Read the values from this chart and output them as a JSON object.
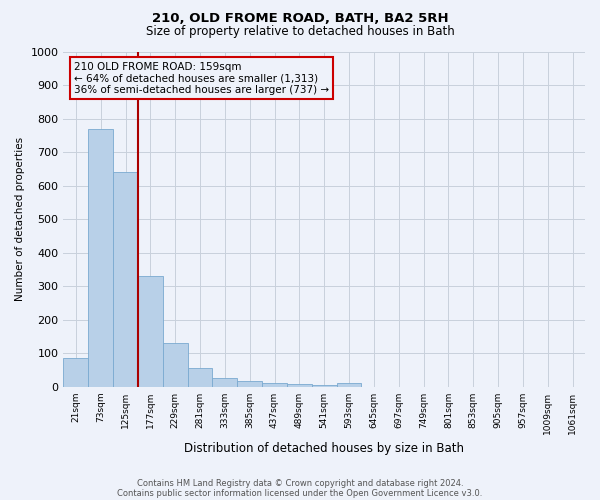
{
  "title1": "210, OLD FROME ROAD, BATH, BA2 5RH",
  "title2": "Size of property relative to detached houses in Bath",
  "xlabel": "Distribution of detached houses by size in Bath",
  "ylabel": "Number of detached properties",
  "footnote1": "Contains HM Land Registry data © Crown copyright and database right 2024.",
  "footnote2": "Contains public sector information licensed under the Open Government Licence v3.0.",
  "bar_labels": [
    "21sqm",
    "73sqm",
    "125sqm",
    "177sqm",
    "229sqm",
    "281sqm",
    "333sqm",
    "385sqm",
    "437sqm",
    "489sqm",
    "541sqm",
    "593sqm",
    "645sqm",
    "697sqm",
    "749sqm",
    "801sqm",
    "853sqm",
    "905sqm",
    "957sqm",
    "1009sqm",
    "1061sqm"
  ],
  "bar_values": [
    85,
    770,
    640,
    330,
    130,
    57,
    25,
    18,
    10,
    7,
    6,
    10,
    0,
    0,
    0,
    0,
    0,
    0,
    0,
    0,
    0
  ],
  "bar_color": "#b8d0e8",
  "bar_edgecolor": "#7aaad0",
  "grid_color": "#c8d0dc",
  "background_color": "#eef2fa",
  "property_line_x": 2.5,
  "property_line_color": "#aa0000",
  "annotation_text": "210 OLD FROME ROAD: 159sqm\n← 64% of detached houses are smaller (1,313)\n36% of semi-detached houses are larger (737) →",
  "annotation_box_facecolor": "#eef2fa",
  "annotation_box_edgecolor": "#cc0000",
  "ylim": [
    0,
    1000
  ],
  "yticks": [
    0,
    100,
    200,
    300,
    400,
    500,
    600,
    700,
    800,
    900,
    1000
  ]
}
